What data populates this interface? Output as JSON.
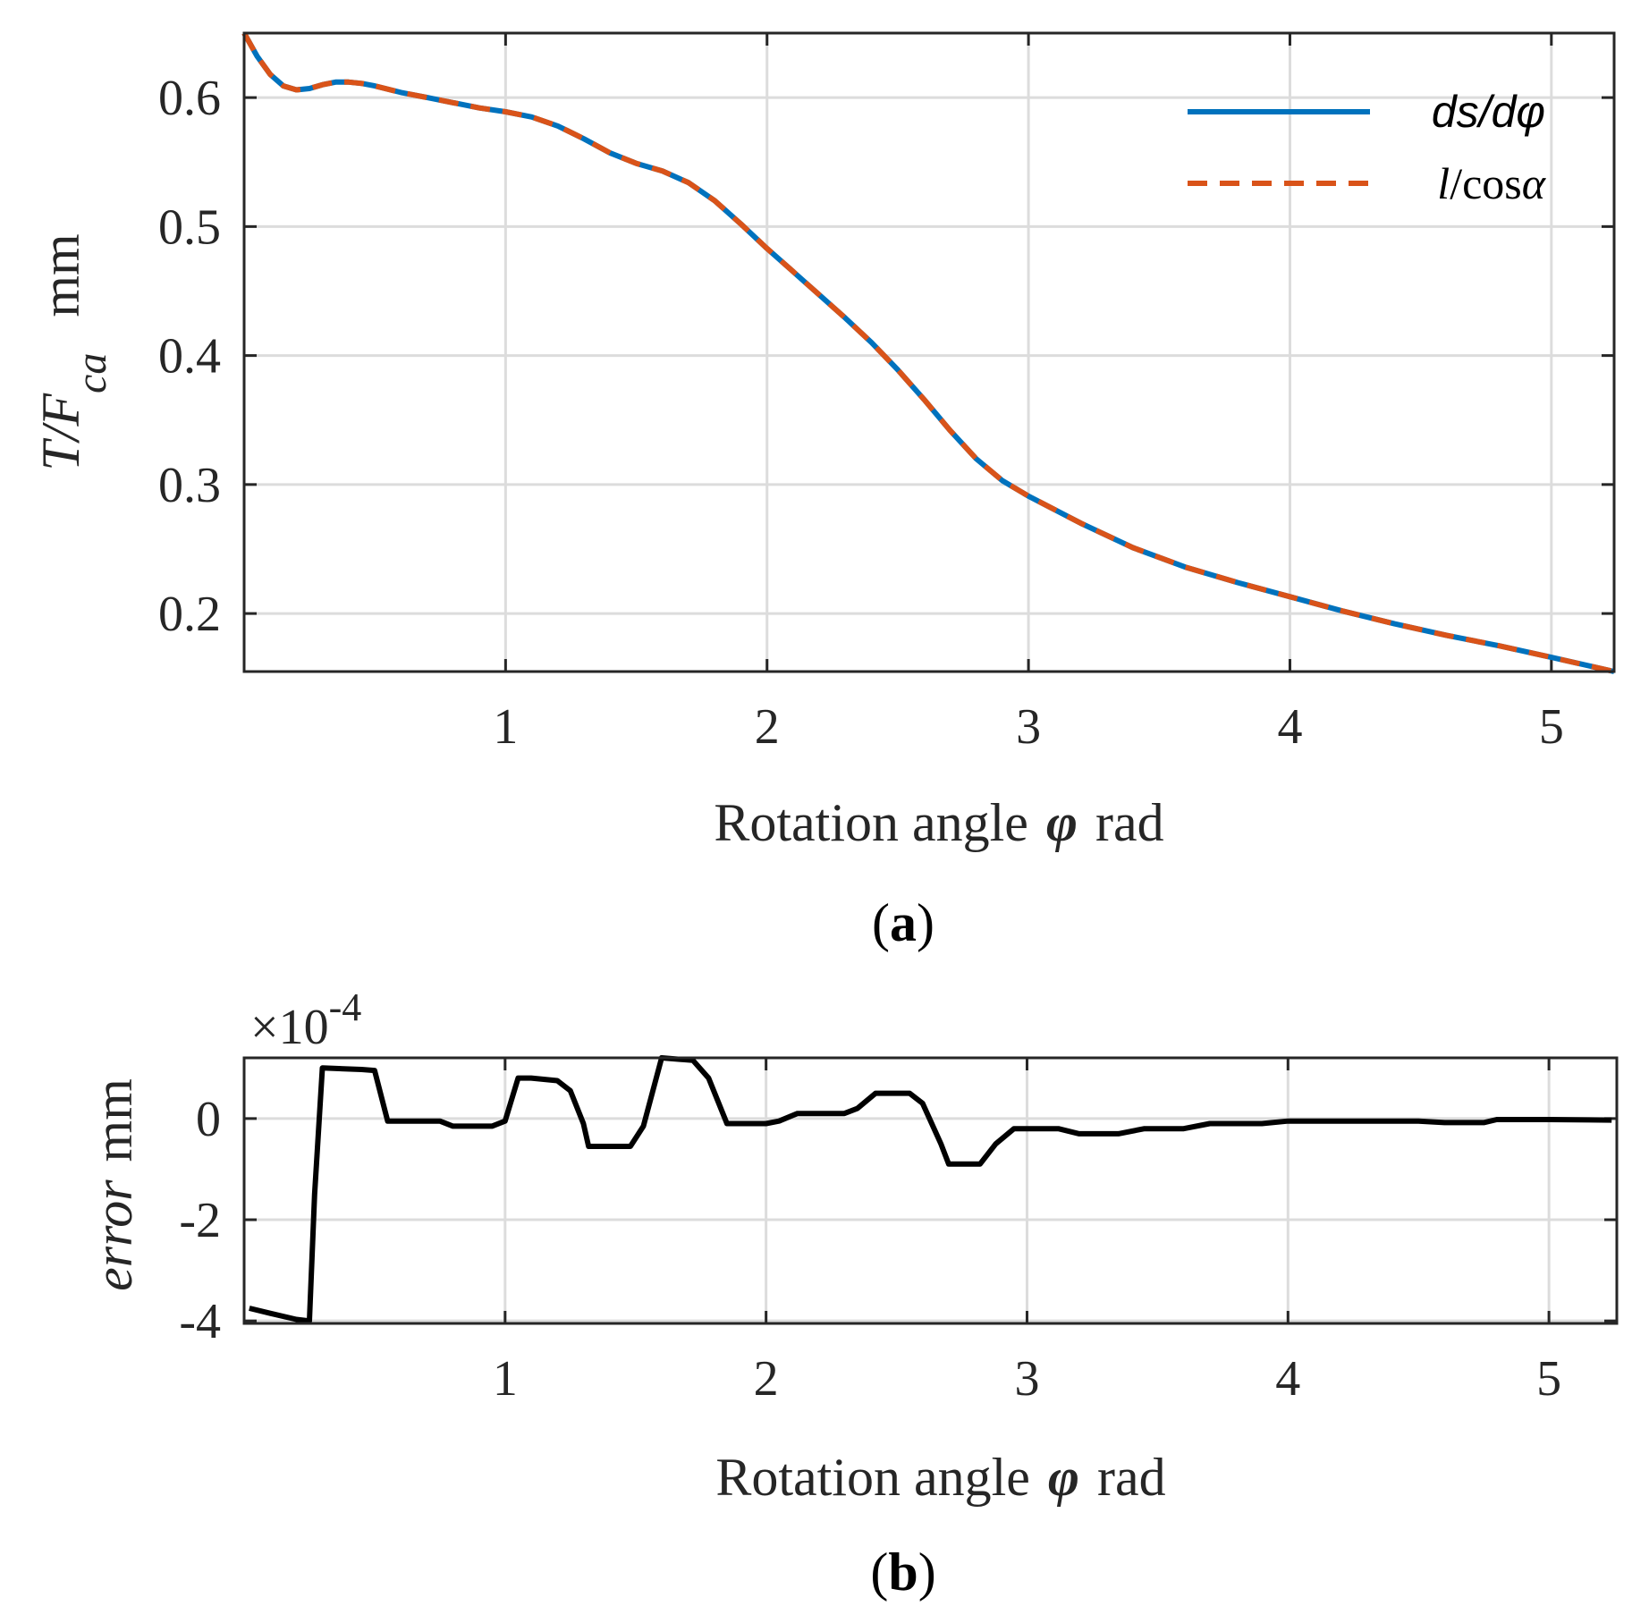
{
  "chart_data": [
    {
      "panel": "a",
      "type": "line",
      "caption": {
        "open": "(",
        "letter": "a",
        "close": ")"
      },
      "xlabel": {
        "text": "Rotation angle",
        "symbol": "φ",
        "unit": "rad"
      },
      "ylabel": {
        "main": "T/F",
        "sub": "ca",
        "unit": "mm"
      },
      "xlim": [
        0,
        5.24
      ],
      "ylim": [
        0.155,
        0.65
      ],
      "xticks": [
        1,
        2,
        3,
        4,
        5
      ],
      "xtick_labels": [
        "1",
        "2",
        "3",
        "4",
        "5"
      ],
      "yticks": [
        0.2,
        0.3,
        0.4,
        0.5,
        0.6
      ],
      "ytick_labels": [
        "0.2",
        "0.3",
        "0.4",
        "0.5",
        "0.6"
      ],
      "grid": true,
      "legend_position": "top-right",
      "series": [
        {
          "name": "ds/dφ",
          "color": "#0072BD",
          "style": "solid",
          "x": [
            0,
            0.05,
            0.1,
            0.15,
            0.2,
            0.25,
            0.3,
            0.35,
            0.4,
            0.45,
            0.5,
            0.6,
            0.7,
            0.8,
            0.9,
            1.0,
            1.1,
            1.2,
            1.3,
            1.4,
            1.5,
            1.6,
            1.7,
            1.8,
            1.9,
            2.0,
            2.1,
            2.2,
            2.3,
            2.4,
            2.5,
            2.6,
            2.7,
            2.8,
            2.9,
            3.0,
            3.2,
            3.4,
            3.6,
            3.8,
            4.0,
            4.2,
            4.4,
            4.6,
            4.8,
            5.0,
            5.24
          ],
          "y": [
            0.65,
            0.632,
            0.618,
            0.609,
            0.606,
            0.607,
            0.61,
            0.612,
            0.612,
            0.611,
            0.609,
            0.604,
            0.6,
            0.596,
            0.592,
            0.589,
            0.585,
            0.578,
            0.568,
            0.557,
            0.549,
            0.543,
            0.534,
            0.52,
            0.502,
            0.483,
            0.465,
            0.447,
            0.429,
            0.41,
            0.389,
            0.366,
            0.342,
            0.32,
            0.303,
            0.291,
            0.27,
            0.251,
            0.236,
            0.224,
            0.213,
            0.202,
            0.192,
            0.183,
            0.175,
            0.166,
            0.155
          ]
        },
        {
          "name": "l/cosα",
          "color": "#D95319",
          "style": "dashed",
          "same_as": "ds/dφ"
        }
      ],
      "legend": {
        "entry1": "ds/dφ",
        "entry2_italic": "l",
        "entry2_rest": "/cos",
        "entry2_greek": "α"
      }
    },
    {
      "panel": "b",
      "type": "line",
      "caption": {
        "open": "(",
        "letter": "b",
        "close": ")"
      },
      "xlabel": {
        "text": "Rotation angle",
        "symbol": "φ",
        "unit": "rad"
      },
      "ylabel": {
        "main": "error",
        "unit": "mm"
      },
      "exponent_label": {
        "base": "×10",
        "power": "-4"
      },
      "xlim": [
        0,
        5.26
      ],
      "ylim": [
        -4.05,
        1.2
      ],
      "xticks": [
        1,
        2,
        3,
        4,
        5
      ],
      "xtick_labels": [
        "1",
        "2",
        "3",
        "4",
        "5"
      ],
      "yticks": [
        -4,
        -2,
        0
      ],
      "ytick_labels": [
        "-4",
        "-2",
        "0"
      ],
      "grid": true,
      "series": [
        {
          "name": "error",
          "color": "#000000",
          "style": "solid",
          "x": [
            0.02,
            0.1,
            0.2,
            0.25,
            0.27,
            0.3,
            0.45,
            0.5,
            0.55,
            0.75,
            0.8,
            0.95,
            1.0,
            1.05,
            1.1,
            1.2,
            1.25,
            1.3,
            1.32,
            1.35,
            1.48,
            1.53,
            1.6,
            1.72,
            1.78,
            1.85,
            2.0,
            2.05,
            2.12,
            2.3,
            2.35,
            2.42,
            2.55,
            2.6,
            2.67,
            2.7,
            2.82,
            2.88,
            2.95,
            3.12,
            3.2,
            3.35,
            3.45,
            3.6,
            3.7,
            3.9,
            4.0,
            4.5,
            4.6,
            4.75,
            4.8,
            5.0,
            5.24
          ],
          "y": [
            -3.75,
            -3.85,
            -3.97,
            -4.0,
            -1.5,
            1.0,
            0.97,
            0.95,
            -0.05,
            -0.05,
            -0.15,
            -0.15,
            -0.05,
            0.8,
            0.8,
            0.75,
            0.55,
            -0.1,
            -0.55,
            -0.55,
            -0.55,
            -0.15,
            1.2,
            1.15,
            0.8,
            -0.1,
            -0.1,
            -0.05,
            0.1,
            0.1,
            0.2,
            0.5,
            0.5,
            0.3,
            -0.5,
            -0.9,
            -0.9,
            -0.5,
            -0.2,
            -0.2,
            -0.3,
            -0.3,
            -0.2,
            -0.2,
            -0.1,
            -0.1,
            -0.05,
            -0.05,
            -0.08,
            -0.08,
            -0.02,
            -0.02,
            -0.03
          ]
        }
      ]
    }
  ]
}
